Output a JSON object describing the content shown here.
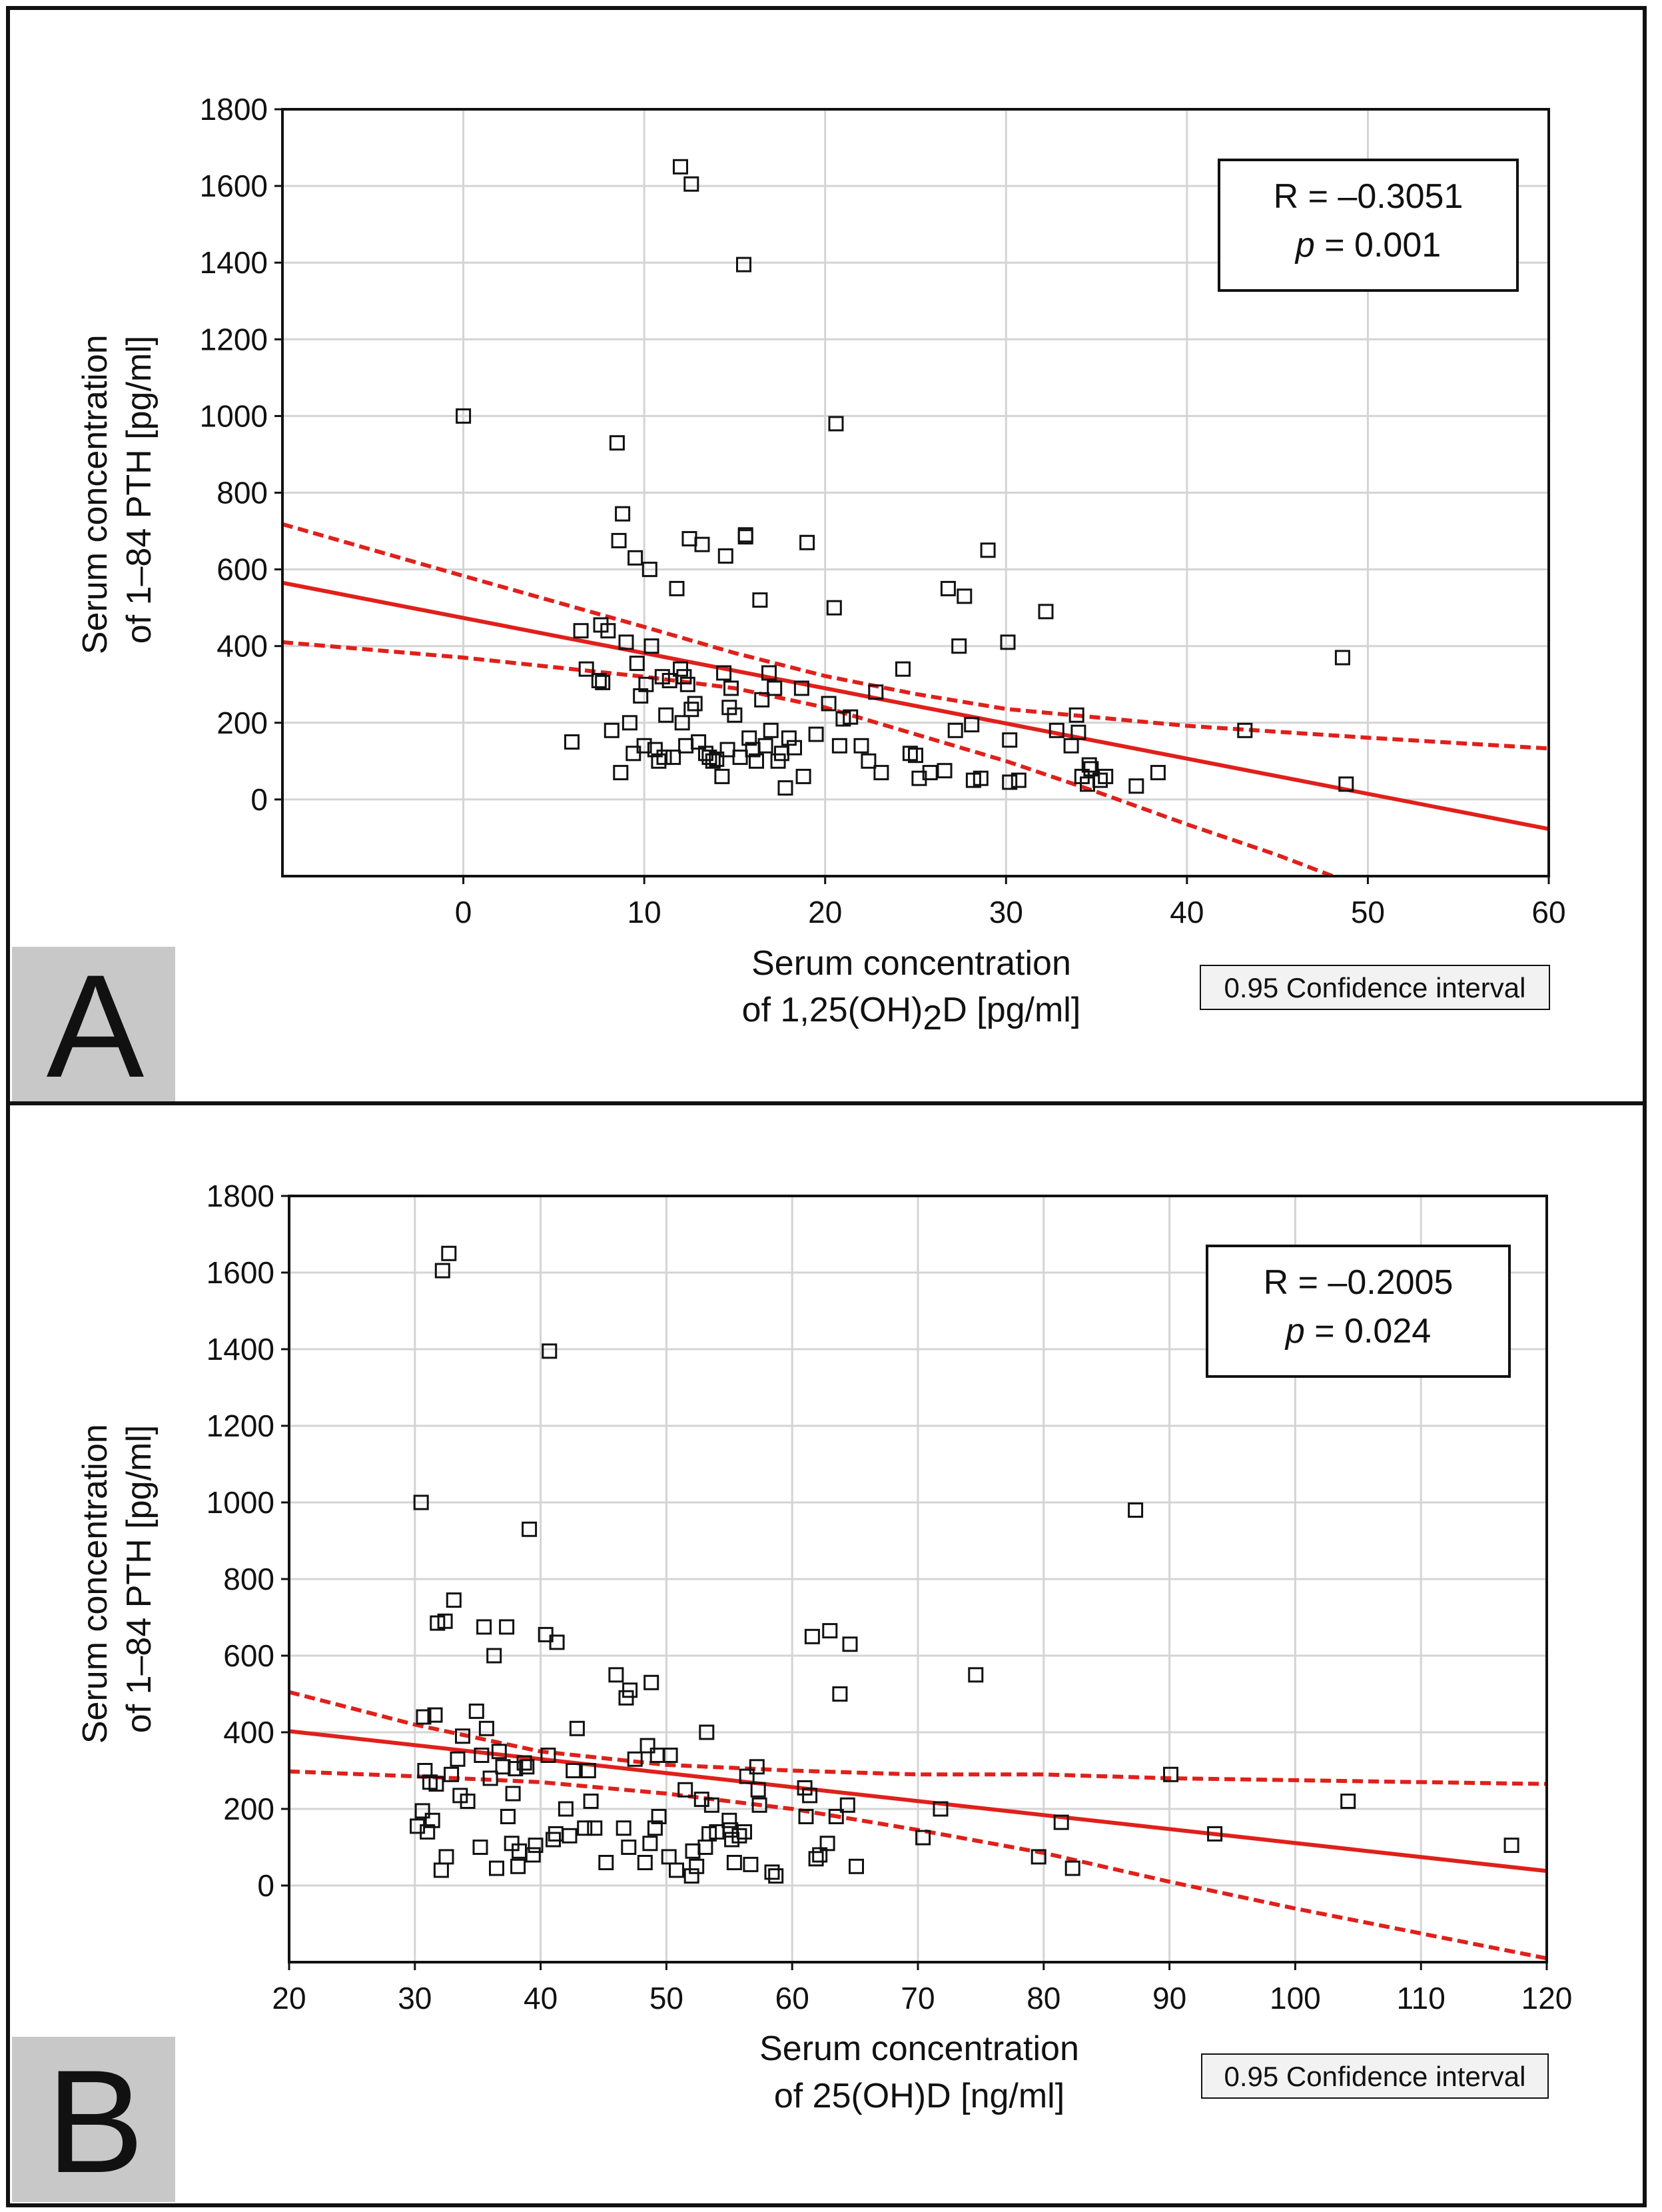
{
  "chart_data": [
    {
      "panel": "A",
      "type": "scatter",
      "xlabel_line1": "Serum concentration",
      "xlabel_line2_pre": "of 1,25(OH)",
      "xlabel_line2_sub": "2",
      "xlabel_line2_post": "D [pg/ml]",
      "ylabel_line1": "Serum concentration",
      "ylabel_line2": "of 1–84 PTH [pg/ml]",
      "xlim": [
        -10,
        60
      ],
      "ylim": [
        -200,
        1800
      ],
      "xticks": [
        0,
        10,
        20,
        30,
        40,
        50,
        60
      ],
      "yticks": [
        0,
        200,
        400,
        600,
        800,
        1000,
        1200,
        1400,
        1600,
        1800
      ],
      "grid": true,
      "stat_r": "R = –0.3051",
      "stat_p_label": "p",
      "stat_p_value": " = 0.001",
      "ci_legend": "0.95 Confidence interval",
      "regression": {
        "x": [
          -10,
          60
        ],
        "y": [
          565,
          -77
        ]
      },
      "ci_upper": {
        "x": [
          -10,
          0,
          10,
          15,
          20,
          25,
          30,
          40,
          50,
          60
        ],
        "y": [
          718,
          583,
          450,
          382,
          322,
          275,
          236,
          192,
          161,
          133
        ]
      },
      "ci_lower": {
        "x": [
          -10,
          0,
          10,
          15,
          20,
          25,
          30,
          35,
          40,
          45,
          50,
          53.3
        ],
        "y": [
          410,
          370,
          320,
          290,
          240,
          170,
          100,
          20,
          -65,
          -145,
          -235,
          -200
        ]
      },
      "points": [
        [
          0,
          1000
        ],
        [
          6,
          150
        ],
        [
          6.5,
          440
        ],
        [
          6.8,
          340
        ],
        [
          7.5,
          310
        ],
        [
          7.6,
          455
        ],
        [
          7.7,
          305
        ],
        [
          8,
          440
        ],
        [
          8.2,
          180
        ],
        [
          8.5,
          930
        ],
        [
          8.6,
          675
        ],
        [
          8.7,
          70
        ],
        [
          8.8,
          745
        ],
        [
          9,
          410
        ],
        [
          9.2,
          200
        ],
        [
          9.4,
          120
        ],
        [
          9.5,
          630
        ],
        [
          9.6,
          355
        ],
        [
          9.8,
          270
        ],
        [
          10,
          140
        ],
        [
          10.1,
          300
        ],
        [
          10.3,
          600
        ],
        [
          10.4,
          400
        ],
        [
          10.6,
          130
        ],
        [
          10.8,
          100
        ],
        [
          11,
          320
        ],
        [
          11.1,
          110
        ],
        [
          11.2,
          220
        ],
        [
          11.4,
          310
        ],
        [
          11.6,
          110
        ],
        [
          11.8,
          550
        ],
        [
          12,
          1650
        ],
        [
          12,
          340
        ],
        [
          12.1,
          200
        ],
        [
          12.2,
          320
        ],
        [
          12.3,
          140
        ],
        [
          12.4,
          300
        ],
        [
          12.5,
          680
        ],
        [
          12.6,
          1605
        ],
        [
          12.6,
          235
        ],
        [
          12.8,
          250
        ],
        [
          13,
          150
        ],
        [
          13.2,
          665
        ],
        [
          13.4,
          120
        ],
        [
          13.6,
          110
        ],
        [
          13.8,
          100
        ],
        [
          14,
          105
        ],
        [
          14.3,
          60
        ],
        [
          14.4,
          330
        ],
        [
          14.5,
          635
        ],
        [
          14.6,
          130
        ],
        [
          14.7,
          240
        ],
        [
          14.8,
          290
        ],
        [
          15,
          220
        ],
        [
          15.3,
          110
        ],
        [
          15.5,
          1395
        ],
        [
          15.6,
          685
        ],
        [
          15.6,
          690
        ],
        [
          15.8,
          160
        ],
        [
          16,
          130
        ],
        [
          16.2,
          100
        ],
        [
          16.4,
          520
        ],
        [
          16.5,
          260
        ],
        [
          16.7,
          140
        ],
        [
          16.9,
          330
        ],
        [
          17,
          180
        ],
        [
          17.2,
          290
        ],
        [
          17.4,
          100
        ],
        [
          17.6,
          120
        ],
        [
          17.8,
          30
        ],
        [
          18,
          160
        ],
        [
          18.3,
          135
        ],
        [
          18.7,
          290
        ],
        [
          18.8,
          60
        ],
        [
          19,
          670
        ],
        [
          19.5,
          170
        ],
        [
          20.2,
          250
        ],
        [
          20.5,
          500
        ],
        [
          20.6,
          980
        ],
        [
          20.8,
          140
        ],
        [
          21,
          210
        ],
        [
          21.4,
          215
        ],
        [
          22,
          140
        ],
        [
          22.4,
          100
        ],
        [
          22.8,
          280
        ],
        [
          23.1,
          70
        ],
        [
          24.3,
          340
        ],
        [
          24.7,
          120
        ],
        [
          25,
          115
        ],
        [
          25.2,
          55
        ],
        [
          25.8,
          70
        ],
        [
          26.6,
          75
        ],
        [
          26.8,
          550
        ],
        [
          27.2,
          180
        ],
        [
          27.4,
          400
        ],
        [
          27.7,
          530
        ],
        [
          28.1,
          195
        ],
        [
          28.2,
          50
        ],
        [
          28.6,
          55
        ],
        [
          29,
          650
        ],
        [
          30.1,
          410
        ],
        [
          30.2,
          155
        ],
        [
          30.2,
          45
        ],
        [
          30.7,
          50
        ],
        [
          32.2,
          490
        ],
        [
          32.8,
          180
        ],
        [
          33.6,
          140
        ],
        [
          33.9,
          220
        ],
        [
          34,
          175
        ],
        [
          34.2,
          60
        ],
        [
          34.5,
          40
        ],
        [
          34.6,
          90
        ],
        [
          34.7,
          80
        ],
        [
          35.2,
          50
        ],
        [
          35.5,
          60
        ],
        [
          37.2,
          35
        ],
        [
          38.4,
          70
        ],
        [
          43.2,
          180
        ],
        [
          48.6,
          370
        ],
        [
          48.8,
          40
        ]
      ]
    },
    {
      "panel": "B",
      "type": "scatter",
      "xlabel_line1": "Serum concentration",
      "xlabel_line2_pre": "of 25(OH)D [ng/ml]",
      "xlabel_line2_sub": "",
      "xlabel_line2_post": "",
      "ylabel_line1": "Serum concentration",
      "ylabel_line2": "of 1–84 PTH [pg/ml]",
      "xlim": [
        20,
        120
      ],
      "ylim": [
        -200,
        1800
      ],
      "xticks": [
        20,
        30,
        40,
        50,
        60,
        70,
        80,
        90,
        100,
        110,
        120
      ],
      "yticks": [
        0,
        200,
        400,
        600,
        800,
        1000,
        1200,
        1400,
        1600,
        1800
      ],
      "grid": true,
      "stat_r": "R = –0.2005",
      "stat_p_label": "p",
      "stat_p_value": " = 0.024",
      "ci_legend": "0.95 Confidence interval",
      "regression": {
        "x": [
          20,
          120
        ],
        "y": [
          403,
          38
        ]
      },
      "ci_upper": {
        "x": [
          20,
          30,
          40,
          50,
          60,
          70,
          80,
          90,
          100,
          110,
          120
        ],
        "y": [
          505,
          420,
          350,
          315,
          300,
          290,
          290,
          280,
          275,
          270,
          265
        ]
      },
      "ci_lower": {
        "x": [
          20,
          30,
          40,
          50,
          60,
          70,
          80,
          90,
          100,
          110,
          120
        ],
        "y": [
          298,
          285,
          270,
          240,
          200,
          145,
          85,
          10,
          -60,
          -125,
          -190
        ]
      },
      "points": [
        [
          30.2,
          155
        ],
        [
          30.5,
          1000
        ],
        [
          30.6,
          195
        ],
        [
          30.7,
          440
        ],
        [
          30.8,
          300
        ],
        [
          31,
          140
        ],
        [
          31.2,
          270
        ],
        [
          31.4,
          170
        ],
        [
          31.6,
          445
        ],
        [
          31.7,
          265
        ],
        [
          31.8,
          685
        ],
        [
          32.1,
          40
        ],
        [
          32.2,
          1605
        ],
        [
          32.4,
          690
        ],
        [
          32.5,
          75
        ],
        [
          32.7,
          1650
        ],
        [
          32.9,
          290
        ],
        [
          33.1,
          745
        ],
        [
          33.4,
          330
        ],
        [
          33.6,
          235
        ],
        [
          33.8,
          390
        ],
        [
          34.2,
          220
        ],
        [
          34.9,
          455
        ],
        [
          35.2,
          100
        ],
        [
          35.3,
          340
        ],
        [
          35.5,
          675
        ],
        [
          35.7,
          410
        ],
        [
          36,
          280
        ],
        [
          36.3,
          600
        ],
        [
          36.5,
          45
        ],
        [
          36.7,
          350
        ],
        [
          37,
          310
        ],
        [
          37.3,
          675
        ],
        [
          37.4,
          180
        ],
        [
          37.7,
          110
        ],
        [
          37.8,
          240
        ],
        [
          38,
          305
        ],
        [
          38.2,
          50
        ],
        [
          38.3,
          90
        ],
        [
          38.7,
          320
        ],
        [
          38.9,
          310
        ],
        [
          39.1,
          930
        ],
        [
          39.4,
          80
        ],
        [
          39.6,
          105
        ],
        [
          40.4,
          655
        ],
        [
          40.6,
          340
        ],
        [
          40.7,
          1395
        ],
        [
          41,
          120
        ],
        [
          41.2,
          135
        ],
        [
          41.3,
          635
        ],
        [
          42,
          200
        ],
        [
          42.3,
          130
        ],
        [
          42.6,
          300
        ],
        [
          42.9,
          410
        ],
        [
          43.5,
          150
        ],
        [
          43.8,
          300
        ],
        [
          44,
          220
        ],
        [
          44.3,
          150
        ],
        [
          45.2,
          60
        ],
        [
          46,
          550
        ],
        [
          46.6,
          150
        ],
        [
          46.8,
          490
        ],
        [
          47,
          100
        ],
        [
          47.1,
          510
        ],
        [
          47.5,
          330
        ],
        [
          48.3,
          60
        ],
        [
          48.5,
          365
        ],
        [
          48.7,
          110
        ],
        [
          48.8,
          530
        ],
        [
          49.1,
          150
        ],
        [
          49.3,
          340
        ],
        [
          49.4,
          180
        ],
        [
          50.2,
          75
        ],
        [
          50.3,
          340
        ],
        [
          50.8,
          40
        ],
        [
          51.5,
          250
        ],
        [
          52,
          25
        ],
        [
          52.1,
          90
        ],
        [
          52.4,
          50
        ],
        [
          52.8,
          225
        ],
        [
          53.1,
          100
        ],
        [
          53.2,
          400
        ],
        [
          53.4,
          135
        ],
        [
          53.6,
          210
        ],
        [
          54,
          140
        ],
        [
          55,
          170
        ],
        [
          55.1,
          145
        ],
        [
          55.2,
          120
        ],
        [
          55.4,
          60
        ],
        [
          55.8,
          130
        ],
        [
          56.2,
          140
        ],
        [
          56.4,
          285
        ],
        [
          56.7,
          55
        ],
        [
          57.2,
          310
        ],
        [
          57.3,
          250
        ],
        [
          57.4,
          210
        ],
        [
          58.4,
          35
        ],
        [
          58.7,
          25
        ],
        [
          61,
          255
        ],
        [
          61.1,
          180
        ],
        [
          61.4,
          235
        ],
        [
          61.6,
          650
        ],
        [
          61.9,
          70
        ],
        [
          62.2,
          80
        ],
        [
          62.8,
          110
        ],
        [
          63,
          665
        ],
        [
          63.5,
          180
        ],
        [
          63.8,
          500
        ],
        [
          64.4,
          210
        ],
        [
          64.6,
          630
        ],
        [
          65.1,
          50
        ],
        [
          70.4,
          125
        ],
        [
          71.8,
          200
        ],
        [
          74.6,
          550
        ],
        [
          79.6,
          75
        ],
        [
          81.4,
          165
        ],
        [
          82.3,
          45
        ],
        [
          87.3,
          980
        ],
        [
          90.1,
          290
        ],
        [
          93.6,
          135
        ],
        [
          104.2,
          220
        ],
        [
          117.2,
          105
        ]
      ]
    }
  ]
}
